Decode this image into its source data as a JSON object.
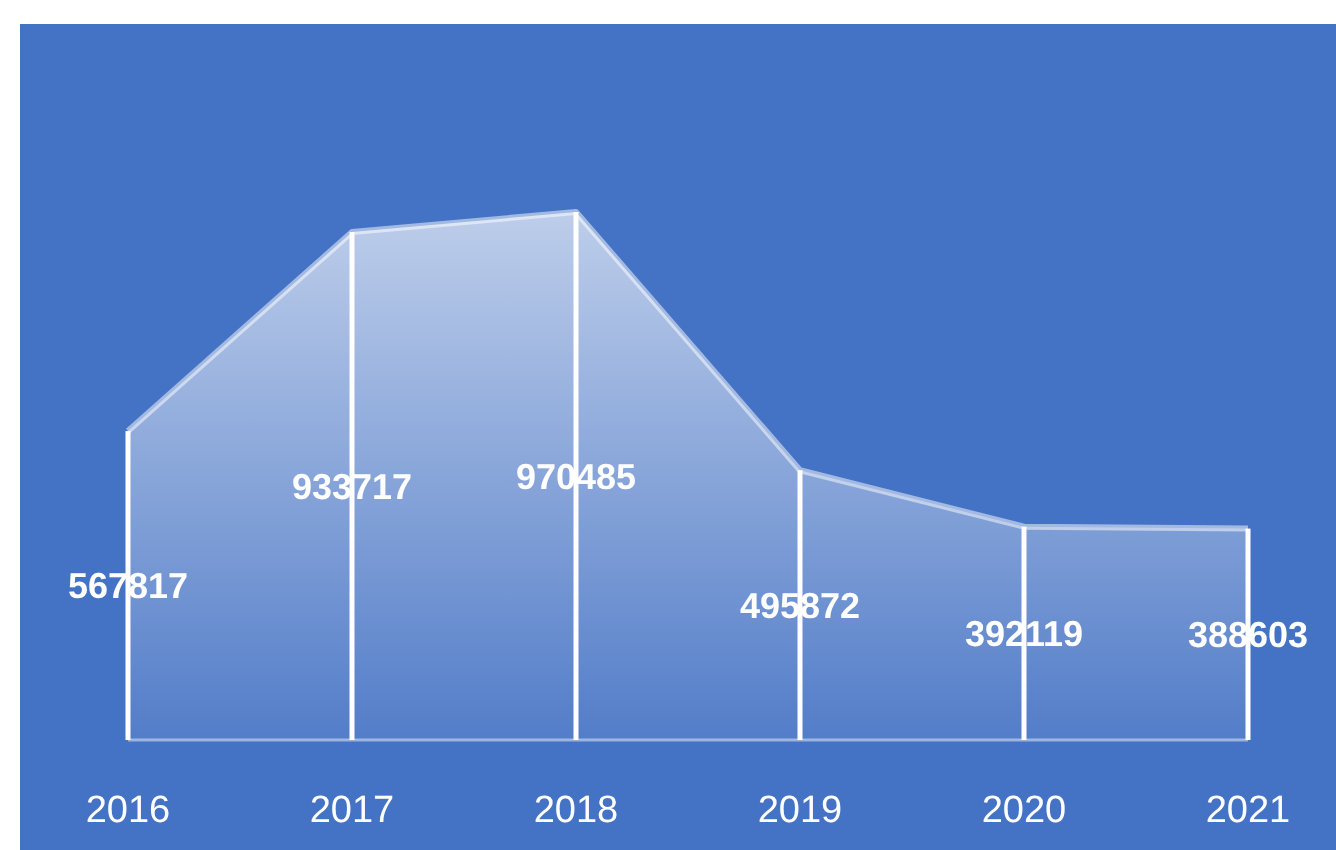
{
  "chart_data": {
    "type": "area",
    "categories": [
      "2016",
      "2017",
      "2018",
      "2019",
      "2020",
      "2021"
    ],
    "series": [
      {
        "color": "#ffffff",
        "values": [
          567817,
          933717,
          970485,
          495872,
          392119,
          388603
        ]
      },
      {
        "type": "bar",
        "color": "#ffffff",
        "values": [
          567817,
          933717,
          970485,
          495872,
          392119,
          388603
        ],
        "value_labels": [
          "567817",
          "933717",
          "970485",
          "495872",
          "392119",
          "388603"
        ]
      }
    ]
  }
}
